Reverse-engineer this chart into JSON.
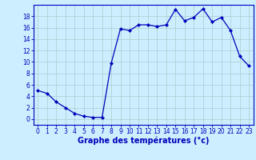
{
  "x": [
    0,
    1,
    2,
    3,
    4,
    5,
    6,
    7,
    8,
    9,
    10,
    11,
    12,
    13,
    14,
    15,
    16,
    17,
    18,
    19,
    20,
    21,
    22,
    23
  ],
  "y": [
    5.0,
    4.5,
    3.0,
    2.0,
    1.0,
    0.5,
    0.3,
    0.3,
    9.8,
    15.8,
    15.5,
    16.5,
    16.5,
    16.2,
    16.5,
    19.2,
    17.2,
    17.8,
    19.3,
    17.0,
    17.8,
    15.5,
    11.0,
    9.3
  ],
  "line_color": "#0000bb",
  "marker": "D",
  "markersize": 2.0,
  "linewidth": 0.9,
  "xlabel": "Graphe des températures (°c)",
  "xlabel_fontsize": 7,
  "background_color": "#cceeff",
  "grid_color": "#aacccc",
  "ylim": [
    -1,
    20
  ],
  "xlim": [
    -0.5,
    23.5
  ],
  "yticks": [
    0,
    2,
    4,
    6,
    8,
    10,
    12,
    14,
    16,
    18
  ],
  "xticks": [
    0,
    1,
    2,
    3,
    4,
    5,
    6,
    7,
    8,
    9,
    10,
    11,
    12,
    13,
    14,
    15,
    16,
    17,
    18,
    19,
    20,
    21,
    22,
    23
  ],
  "tick_color": "#0000bb",
  "tick_fontsize": 5.5,
  "axis_color": "#0000bb"
}
